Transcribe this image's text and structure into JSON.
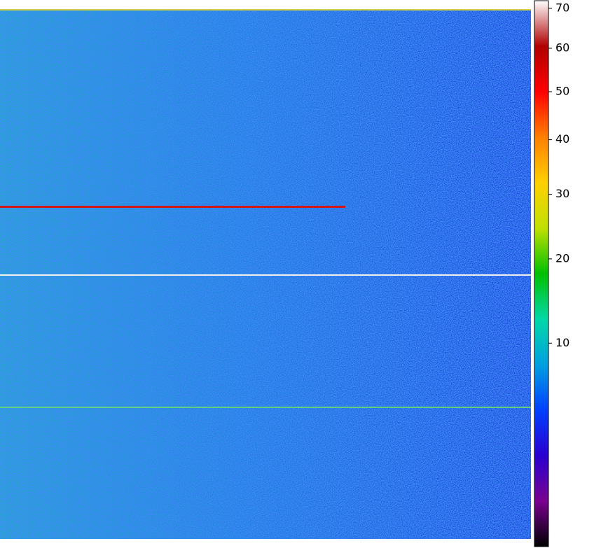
{
  "chart_data": {
    "type": "heatmap",
    "zscale": "sqrt",
    "zlim": [
      0,
      72
    ],
    "zticks": [
      10,
      20,
      30,
      40,
      50,
      60,
      70
    ],
    "colormap": [
      "#000000",
      "#7a0090",
      "#2a00d0",
      "#0040ff",
      "#00a0e0",
      "#00d8a8",
      "#00c000",
      "#c0e000",
      "#ffd000",
      "#ff8000",
      "#ff0000",
      "#b00000",
      "#ffffff"
    ]
  }
}
